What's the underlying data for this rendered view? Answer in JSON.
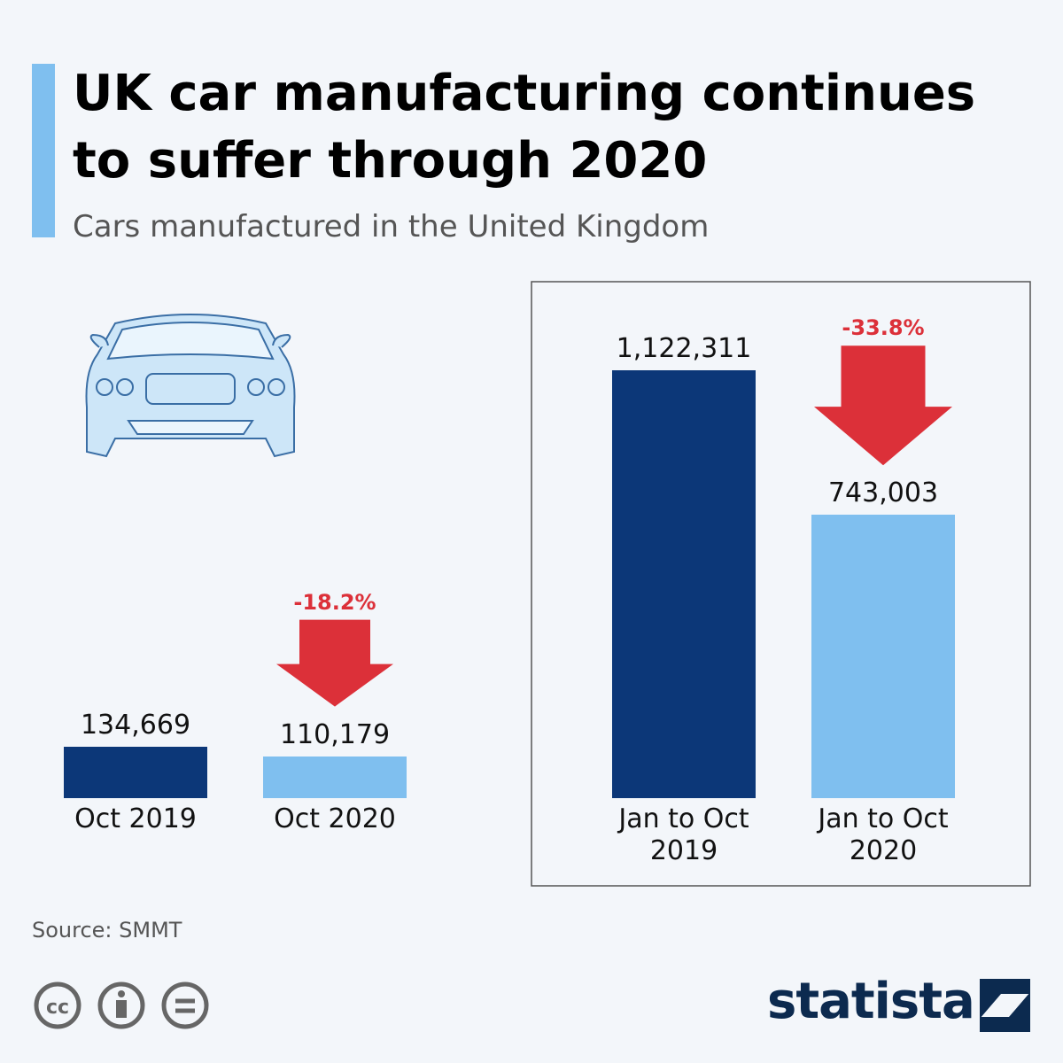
{
  "title": "UK car manufacturing continues to suffer through 2020",
  "subtitle": "Cars manufactured in the United Kingdom",
  "source": "Source: SMMT",
  "brand": "statista",
  "chart_data": [
    {
      "type": "bar",
      "categories": [
        "Oct 2019",
        "Oct 2020"
      ],
      "values": [
        134669,
        110179
      ],
      "value_labels": [
        "134,669",
        "110,179"
      ],
      "colors": [
        "#0c3778",
        "#7fbfef"
      ],
      "annotation": "-18.2%",
      "annotation_color": "#dc3039"
    },
    {
      "type": "bar",
      "categories": [
        "Jan to Oct 2019",
        "Jan to Oct 2020"
      ],
      "values": [
        1122311,
        743003
      ],
      "value_labels": [
        "1,122,311",
        "743,003"
      ],
      "colors": [
        "#0c3778",
        "#7fbfef"
      ],
      "annotation": "-33.8%",
      "annotation_color": "#dc3039"
    }
  ]
}
